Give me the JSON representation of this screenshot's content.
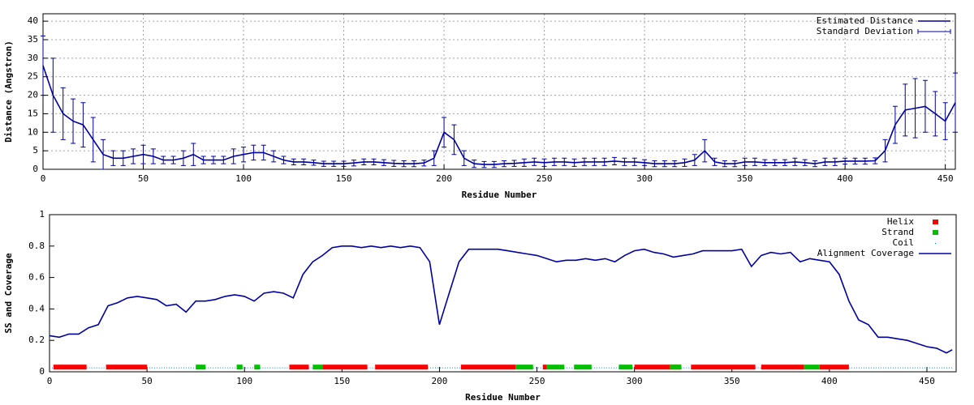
{
  "chart_data": [
    {
      "type": "line",
      "xlabel": "Residue Number",
      "ylabel": "Distance (Angstron)",
      "xlim": [
        0,
        455
      ],
      "ylim": [
        0,
        42
      ],
      "xticks": [
        0,
        50,
        100,
        150,
        200,
        250,
        300,
        350,
        400,
        450
      ],
      "yticks": [
        0,
        5,
        10,
        15,
        20,
        25,
        30,
        35,
        40
      ],
      "grid": true,
      "legend": "top-right",
      "x": [
        0,
        5,
        10,
        15,
        20,
        25,
        30,
        35,
        40,
        45,
        50,
        55,
        60,
        65,
        70,
        75,
        80,
        85,
        90,
        95,
        100,
        105,
        110,
        115,
        120,
        125,
        130,
        135,
        140,
        145,
        150,
        155,
        160,
        165,
        170,
        175,
        180,
        185,
        190,
        195,
        200,
        205,
        210,
        215,
        220,
        225,
        230,
        235,
        240,
        245,
        250,
        255,
        260,
        265,
        270,
        275,
        280,
        285,
        290,
        295,
        300,
        305,
        310,
        315,
        320,
        325,
        330,
        335,
        340,
        345,
        350,
        355,
        360,
        365,
        370,
        375,
        380,
        385,
        390,
        395,
        400,
        405,
        410,
        415,
        420,
        425,
        430,
        435,
        440,
        445,
        450,
        455
      ],
      "series": [
        {
          "name": "Estimated Distance",
          "error_name": "Standard Deviation",
          "color": "#0000a0",
          "values": [
            28,
            20,
            15,
            13,
            12,
            8,
            4,
            3,
            3,
            3.5,
            4,
            3.5,
            2.5,
            2.5,
            3,
            4,
            2.5,
            2.5,
            2.5,
            3.5,
            4,
            4.5,
            4.5,
            3.5,
            2.5,
            2,
            2,
            1.8,
            1.5,
            1.5,
            1.5,
            1.7,
            2,
            2,
            1.8,
            1.6,
            1.5,
            1.5,
            1.7,
            3,
            10,
            8,
            3,
            1.5,
            1.3,
            1.3,
            1.5,
            1.6,
            1.8,
            2,
            1.8,
            2,
            2,
            1.8,
            2,
            2,
            2,
            2.2,
            2,
            2,
            1.8,
            1.5,
            1.5,
            1.5,
            1.8,
            2.5,
            5,
            2,
            1.5,
            1.5,
            2,
            2,
            1.8,
            1.8,
            1.8,
            2,
            1.8,
            1.5,
            2,
            2,
            2.2,
            2.2,
            2.2,
            2.3,
            5,
            12,
            16,
            16.5,
            17,
            15,
            13,
            18
          ],
          "errors": [
            8,
            10,
            7,
            6,
            6,
            6,
            4,
            2,
            2,
            2,
            2.5,
            2,
            1,
            1,
            2,
            3,
            1,
            1,
            1,
            2,
            2,
            2,
            2,
            1.5,
            1,
            0.8,
            0.8,
            0.7,
            0.7,
            0.7,
            0.7,
            0.8,
            0.8,
            0.8,
            0.8,
            0.8,
            0.8,
            0.8,
            0.8,
            2,
            4,
            4,
            2,
            1,
            0.8,
            0.8,
            0.8,
            0.8,
            1,
            1,
            1,
            1,
            1,
            1,
            1,
            1,
            1,
            1,
            1,
            1,
            0.8,
            0.8,
            0.8,
            0.8,
            1,
            1.5,
            3,
            1,
            0.8,
            0.8,
            1,
            1,
            0.8,
            0.8,
            0.8,
            1,
            0.8,
            0.8,
            1,
            1,
            0.8,
            0.8,
            0.8,
            0.8,
            3,
            5,
            7,
            8,
            7,
            6,
            5,
            8
          ]
        }
      ]
    },
    {
      "type": "line",
      "xlabel": "Residue Number",
      "ylabel": "SS and Coverage",
      "xlim": [
        0,
        465
      ],
      "ylim": [
        0,
        1
      ],
      "xticks": [
        0,
        50,
        100,
        150,
        200,
        250,
        300,
        350,
        400,
        450
      ],
      "yticks": [
        0,
        0.2,
        0.4,
        0.6,
        0.8,
        1
      ],
      "grid": false,
      "legend": "top-right",
      "series": [
        {
          "name": "Helix",
          "color": "#ff0000",
          "value": 0.03,
          "ranges": [
            [
              2,
              19
            ],
            [
              29,
              50
            ],
            [
              123,
              133
            ],
            [
              140,
              163
            ],
            [
              167,
              194
            ],
            [
              211,
              239
            ],
            [
              253,
              255
            ],
            [
              300,
              324
            ],
            [
              329,
              362
            ],
            [
              365,
              387
            ],
            [
              395,
              410
            ]
          ]
        },
        {
          "name": "Strand",
          "color": "#00c000",
          "value": 0.03,
          "ranges": [
            [
              75,
              80
            ],
            [
              96,
              99
            ],
            [
              105,
              108
            ],
            [
              135,
              140
            ],
            [
              239,
              248
            ],
            [
              255,
              264
            ],
            [
              269,
              278
            ],
            [
              292,
              299
            ],
            [
              318,
              324
            ],
            [
              387,
              395
            ]
          ]
        },
        {
          "name": "Coil",
          "color": "#0080ff",
          "value": 0.03,
          "ranges": [
            [
              0,
              2
            ],
            [
              19,
              29
            ],
            [
              50,
              75
            ],
            [
              80,
              96
            ],
            [
              99,
              105
            ],
            [
              108,
              123
            ],
            [
              133,
              135
            ],
            [
              163,
              167
            ],
            [
              194,
              211
            ],
            [
              248,
              253
            ],
            [
              264,
              269
            ],
            [
              278,
              292
            ],
            [
              299,
              300
            ],
            [
              324,
              329
            ],
            [
              362,
              365
            ],
            [
              410,
              463
            ]
          ]
        },
        {
          "name": "Alignment Coverage",
          "color": "#0000a0",
          "x": [
            0,
            5,
            10,
            15,
            20,
            25,
            30,
            35,
            40,
            45,
            50,
            55,
            60,
            65,
            70,
            75,
            80,
            85,
            90,
            95,
            100,
            105,
            110,
            115,
            120,
            125,
            130,
            135,
            140,
            145,
            150,
            155,
            160,
            165,
            170,
            175,
            180,
            185,
            190,
            195,
            200,
            205,
            210,
            215,
            220,
            225,
            230,
            235,
            240,
            245,
            250,
            255,
            260,
            265,
            270,
            275,
            280,
            285,
            290,
            295,
            300,
            305,
            310,
            315,
            320,
            325,
            330,
            335,
            340,
            345,
            350,
            355,
            360,
            365,
            370,
            375,
            380,
            385,
            390,
            395,
            400,
            405,
            410,
            415,
            420,
            425,
            430,
            435,
            440,
            445,
            450,
            455,
            460,
            463
          ],
          "values": [
            0.23,
            0.22,
            0.24,
            0.24,
            0.28,
            0.3,
            0.42,
            0.44,
            0.47,
            0.48,
            0.47,
            0.46,
            0.42,
            0.43,
            0.38,
            0.45,
            0.45,
            0.46,
            0.48,
            0.49,
            0.48,
            0.45,
            0.5,
            0.51,
            0.5,
            0.47,
            0.62,
            0.7,
            0.74,
            0.79,
            0.8,
            0.8,
            0.79,
            0.8,
            0.79,
            0.8,
            0.79,
            0.8,
            0.79,
            0.7,
            0.3,
            0.5,
            0.7,
            0.78,
            0.78,
            0.78,
            0.78,
            0.77,
            0.76,
            0.75,
            0.74,
            0.72,
            0.7,
            0.71,
            0.71,
            0.72,
            0.71,
            0.72,
            0.7,
            0.74,
            0.77,
            0.78,
            0.76,
            0.75,
            0.73,
            0.74,
            0.75,
            0.77,
            0.77,
            0.77,
            0.77,
            0.78,
            0.67,
            0.74,
            0.76,
            0.75,
            0.76,
            0.7,
            0.72,
            0.71,
            0.7,
            0.62,
            0.45,
            0.33,
            0.3,
            0.22,
            0.22,
            0.21,
            0.2,
            0.18,
            0.16,
            0.15,
            0.12,
            0.14
          ]
        }
      ]
    }
  ]
}
